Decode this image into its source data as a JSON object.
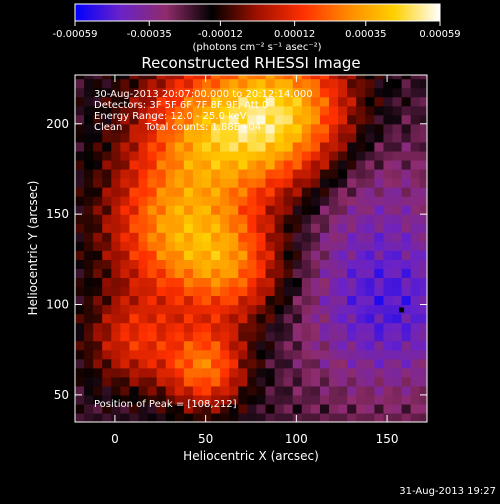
{
  "chart_data": {
    "type": "heatmap",
    "title": "Reconstructed RHESSI Image",
    "xlabel": "Heliocentric X (arcsec)",
    "ylabel": "Heliocentric Y (arcsec)",
    "xlim": [
      -22,
      172
    ],
    "ylim": [
      35,
      227
    ],
    "x_ticks": [
      0,
      50,
      100,
      150
    ],
    "x_tick_labels": [
      "0",
      "50",
      "100",
      "150"
    ],
    "y_ticks": [
      50,
      100,
      150,
      200
    ],
    "y_tick_labels": [
      "50",
      "100",
      "150",
      "200"
    ],
    "colorbar": {
      "range": [
        -0.00059,
        0.00059
      ],
      "tick_values": [
        -0.00059,
        -0.00035,
        -0.00012,
        0.00012,
        0.00035,
        0.00059
      ],
      "tick_labels": [
        "-0.00059",
        "-0.00035",
        "-0.00012",
        "0.00012",
        "0.00035",
        "0.00059"
      ],
      "unit_label": "(photons cm⁻² s⁻¹ asec⁻²)",
      "colors": [
        "#0000ff",
        "#6a22c8",
        "#8f2c6a",
        "#000000",
        "#a01000",
        "#ff3000",
        "#ff8a00",
        "#ffd000",
        "#ffffff"
      ]
    },
    "annotations": [
      "30-Aug-2013 20:07:00.000 to 20:12:14.000",
      "Detectors: 3F 5F 6F 7F 8F 9F, Att 0",
      "Energy Range: 12.0 - 25.0 keV",
      "Clean",
      "Total counts: 1.88E+04"
    ],
    "peak_label": "Position of Peak = [108,212]",
    "peak": [
      108,
      212
    ],
    "marker": [
      158,
      97
    ],
    "grid": false,
    "legend": "none"
  },
  "footer": {
    "timestamp": "31-Aug-2013 19:27"
  }
}
